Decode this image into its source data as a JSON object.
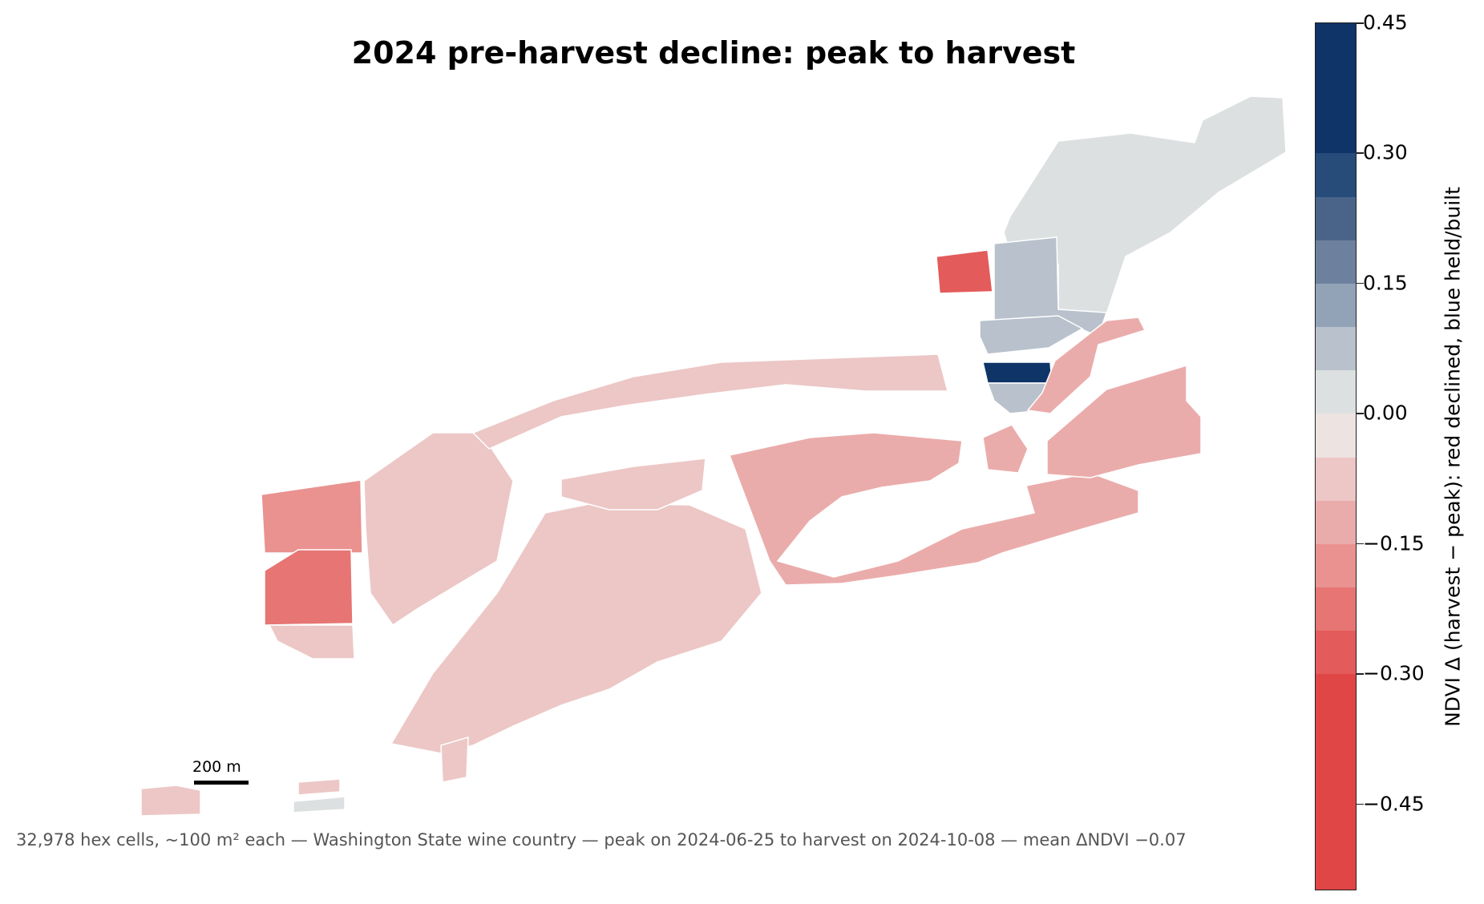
{
  "title": "2024 pre-harvest decline: peak to harvest",
  "caption": "32,978 hex cells, ~100 m² each — Washington State wine country — peak on 2024-06-25 to harvest on 2024-10-08 — mean ΔNDVI −0.07",
  "scale_bar": {
    "label": "200 m"
  },
  "colorbar": {
    "label": "NDVI Δ (harvest − peak): red declined, blue held/built",
    "ticks": [
      {
        "value": 0.45,
        "label": "0.45"
      },
      {
        "value": 0.3,
        "label": "0.30"
      },
      {
        "value": 0.15,
        "label": "0.15"
      },
      {
        "value": 0.0,
        "label": "0.00"
      },
      {
        "value": -0.15,
        "label": "−0.15"
      },
      {
        "value": -0.3,
        "label": "−0.30"
      },
      {
        "value": -0.45,
        "label": "−0.45"
      }
    ],
    "min": -0.55,
    "max": 0.45,
    "bins": [
      {
        "from": 0.4,
        "to": 0.45,
        "color": "#0e3468"
      },
      {
        "from": 0.3,
        "to": 0.4,
        "color": "#0e3468"
      },
      {
        "from": 0.25,
        "to": 0.3,
        "color": "#274c7a"
      },
      {
        "from": 0.2,
        "to": 0.25,
        "color": "#4a6489"
      },
      {
        "from": 0.15,
        "to": 0.2,
        "color": "#6d819e"
      },
      {
        "from": 0.1,
        "to": 0.15,
        "color": "#92a3b7"
      },
      {
        "from": 0.05,
        "to": 0.1,
        "color": "#b8c1cc"
      },
      {
        "from": 0.0,
        "to": 0.05,
        "color": "#dde0e1"
      },
      {
        "from": -0.05,
        "to": 0.0,
        "color": "#ede3e1"
      },
      {
        "from": -0.1,
        "to": -0.05,
        "color": "#ecc7c6"
      },
      {
        "from": -0.15,
        "to": -0.1,
        "color": "#eaacab"
      },
      {
        "from": -0.2,
        "to": -0.15,
        "color": "#e99290"
      },
      {
        "from": -0.25,
        "to": -0.2,
        "color": "#e67573"
      },
      {
        "from": -0.3,
        "to": -0.25,
        "color": "#e35b5a"
      },
      {
        "from": -0.55,
        "to": -0.3,
        "color": "#e04646"
      }
    ]
  },
  "fields": [
    {
      "name": "west-block-a",
      "color": "#e99290"
    },
    {
      "name": "west-block-b",
      "color": "#e67573"
    },
    {
      "name": "west-block-c",
      "color": "#ecc7c6"
    },
    {
      "name": "north-strip",
      "color": "#ecc7c6"
    },
    {
      "name": "central-wedge",
      "color": "#ecc7c6"
    },
    {
      "name": "east-fan",
      "color": "#eaacab"
    },
    {
      "name": "northeast-cluster",
      "color": "#dde0e1"
    },
    {
      "name": "held-block",
      "color": "#b8c1cc"
    },
    {
      "name": "held-strip",
      "color": "#0e3468"
    },
    {
      "name": "far-east-block",
      "color": "#eaacab"
    },
    {
      "name": "isolated-red",
      "color": "#e35b5a"
    },
    {
      "name": "southwest-small",
      "color": "#ecc7c6"
    }
  ]
}
